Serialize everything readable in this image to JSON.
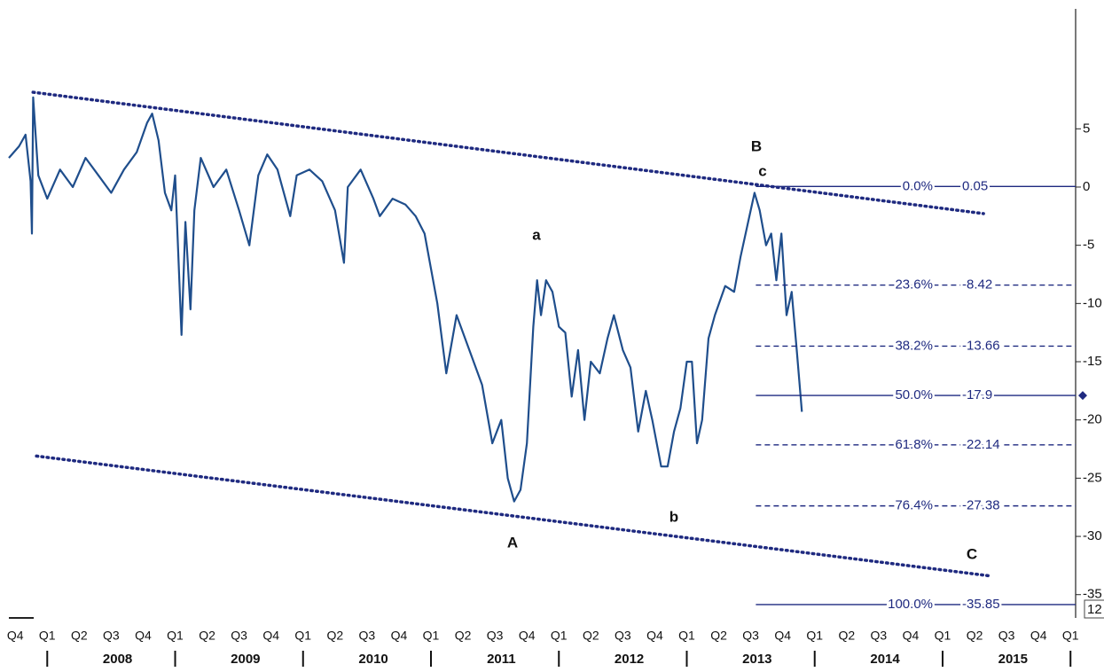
{
  "chart_data": {
    "type": "line",
    "series": [
      {
        "name": "price",
        "color": "#1f4e8c",
        "x": [
          2007.7,
          2007.78,
          2007.83,
          2007.87,
          2007.88,
          2007.89,
          2007.93,
          2008.0,
          2008.1,
          2008.2,
          2008.3,
          2008.4,
          2008.5,
          2008.6,
          2008.7,
          2008.78,
          2008.82,
          2008.87,
          2008.92,
          2008.97,
          2009.0,
          2009.05,
          2009.08,
          2009.12,
          2009.15,
          2009.2,
          2009.3,
          2009.4,
          2009.5,
          2009.58,
          2009.65,
          2009.72,
          2009.8,
          2009.9,
          2009.95,
          2010.05,
          2010.15,
          2010.25,
          2010.32,
          2010.35,
          2010.45,
          2010.55,
          2010.6,
          2010.7,
          2010.8,
          2010.88,
          2010.95,
          2011.0,
          2011.05,
          2011.12,
          2011.2,
          2011.3,
          2011.4,
          2011.48,
          2011.55,
          2011.6,
          2011.65,
          2011.7,
          2011.75,
          2011.8,
          2011.83,
          2011.86,
          2011.9,
          2011.95,
          2012.0,
          2012.05,
          2012.1,
          2012.15,
          2012.2,
          2012.25,
          2012.32,
          2012.38,
          2012.43,
          2012.5,
          2012.56,
          2012.62,
          2012.68,
          2012.73,
          2012.8,
          2012.85,
          2012.9,
          2012.95,
          2013.0,
          2013.04,
          2013.08,
          2013.12,
          2013.17,
          2013.22,
          2013.3,
          2013.37,
          2013.42,
          2013.48,
          2013.53,
          2013.57,
          2013.62,
          2013.66,
          2013.7,
          2013.74,
          2013.78,
          2013.82,
          2013.86,
          2013.9
        ],
        "values": [
          2.5,
          3.5,
          4.5,
          0.5,
          -4,
          7.7,
          1,
          -1,
          1.5,
          0,
          2.5,
          1,
          -0.5,
          1.5,
          3,
          5.5,
          6.3,
          4,
          -0.5,
          -2,
          1,
          -12.7,
          -3,
          -10.5,
          -2,
          2.5,
          0,
          1.5,
          -2,
          -5,
          1,
          2.8,
          1.5,
          -2.5,
          1,
          1.5,
          0.5,
          -2,
          -6.5,
          0,
          1.5,
          -1,
          -2.5,
          -1,
          -1.5,
          -2.5,
          -4,
          -7,
          -10,
          -16,
          -11,
          -14,
          -17,
          -22,
          -20,
          -25,
          -27,
          -26,
          -22,
          -12,
          -8,
          -11,
          -8,
          -9,
          -12,
          -12.5,
          -18,
          -14,
          -20,
          -15,
          -16,
          -13,
          -11,
          -14,
          -15.5,
          -21,
          -17.5,
          -20,
          -24,
          -24,
          -21,
          -19,
          -15,
          -15,
          -22,
          -20,
          -13,
          -11,
          -8.5,
          -9,
          -6,
          -3,
          -0.5,
          -2,
          -5,
          -4,
          -8,
          -4,
          -11,
          -9,
          -14,
          -19.3
        ]
      }
    ],
    "trendlines": [
      {
        "color": "#1f2a80",
        "x": [
          2007.889,
          2015.32
        ],
        "values": [
          8.14,
          -2.28
        ]
      },
      {
        "color": "#1f2a80",
        "x": [
          2007.916,
          2015.376
        ],
        "values": [
          -23.1,
          -33.4
        ]
      }
    ],
    "fib_start": 2013.54,
    "fib_color": "#1f2a80",
    "fib_levels": [
      {
        "label": "0.0%",
        "value": 0.05,
        "style": "solid"
      },
      {
        "label": "23.6%",
        "value": -8.42,
        "style": "dashed"
      },
      {
        "label": "38.2%",
        "value": -13.66,
        "style": "dashed"
      },
      {
        "label": "50.0%",
        "value": -17.9,
        "style": "solid"
      },
      {
        "label": "61.8%",
        "value": -22.14,
        "style": "dashed"
      },
      {
        "label": "76.4%",
        "value": -27.38,
        "style": "dashed"
      },
      {
        "label": "100.0%",
        "value": -35.85,
        "style": "solid"
      }
    ],
    "annotations": [
      "B",
      "c",
      "a",
      "A",
      "b",
      "C"
    ],
    "price_box": "12",
    "xlim": [
      2007.7,
      2016.04
    ],
    "ylim": [
      -37.0,
      15.3
    ],
    "yticks": [
      5,
      0,
      -5,
      -10,
      -15,
      -20,
      -25,
      -30,
      -35
    ],
    "xticks": [
      {
        "value": 2007.75,
        "label": "Q4"
      },
      {
        "value": 2008.0,
        "label": "Q1"
      },
      {
        "value": 2008.25,
        "label": "Q2"
      },
      {
        "value": 2008.5,
        "label": "Q3"
      },
      {
        "value": 2008.75,
        "label": "Q4"
      },
      {
        "value": 2009.0,
        "label": "Q1"
      },
      {
        "value": 2009.25,
        "label": "Q2"
      },
      {
        "value": 2009.5,
        "label": "Q3"
      },
      {
        "value": 2009.75,
        "label": "Q4"
      },
      {
        "value": 2010.0,
        "label": "Q1"
      },
      {
        "value": 2010.25,
        "label": "Q2"
      },
      {
        "value": 2010.5,
        "label": "Q3"
      },
      {
        "value": 2010.75,
        "label": "Q4"
      },
      {
        "value": 2011.0,
        "label": "Q1"
      },
      {
        "value": 2011.25,
        "label": "Q2"
      },
      {
        "value": 2011.5,
        "label": "Q3"
      },
      {
        "value": 2011.75,
        "label": "Q4"
      },
      {
        "value": 2012.0,
        "label": "Q1"
      },
      {
        "value": 2012.25,
        "label": "Q2"
      },
      {
        "value": 2012.5,
        "label": "Q3"
      },
      {
        "value": 2012.75,
        "label": "Q4"
      },
      {
        "value": 2013.0,
        "label": "Q1"
      },
      {
        "value": 2013.25,
        "label": "Q2"
      },
      {
        "value": 2013.5,
        "label": "Q3"
      },
      {
        "value": 2013.75,
        "label": "Q4"
      },
      {
        "value": 2014.0,
        "label": "Q1"
      },
      {
        "value": 2014.25,
        "label": "Q2"
      },
      {
        "value": 2014.5,
        "label": "Q3"
      },
      {
        "value": 2014.75,
        "label": "Q4"
      },
      {
        "value": 2015.0,
        "label": "Q1"
      },
      {
        "value": 2015.25,
        "label": "Q2"
      },
      {
        "value": 2015.5,
        "label": "Q3"
      },
      {
        "value": 2015.75,
        "label": "Q4"
      },
      {
        "value": 2016.0,
        "label": "Q1"
      }
    ],
    "year_labels": [
      {
        "value": 2008.55,
        "label": "2008"
      },
      {
        "value": 2009.55,
        "label": "2009"
      },
      {
        "value": 2010.55,
        "label": "2010"
      },
      {
        "value": 2011.55,
        "label": "2011"
      },
      {
        "value": 2012.55,
        "label": "2012"
      },
      {
        "value": 2013.55,
        "label": "2013"
      },
      {
        "value": 2014.55,
        "label": "2014"
      },
      {
        "value": 2015.55,
        "label": "2015"
      }
    ],
    "year_dividers": [
      2008,
      2009,
      2010,
      2011,
      2012,
      2013,
      2014,
      2015,
      2016
    ]
  }
}
